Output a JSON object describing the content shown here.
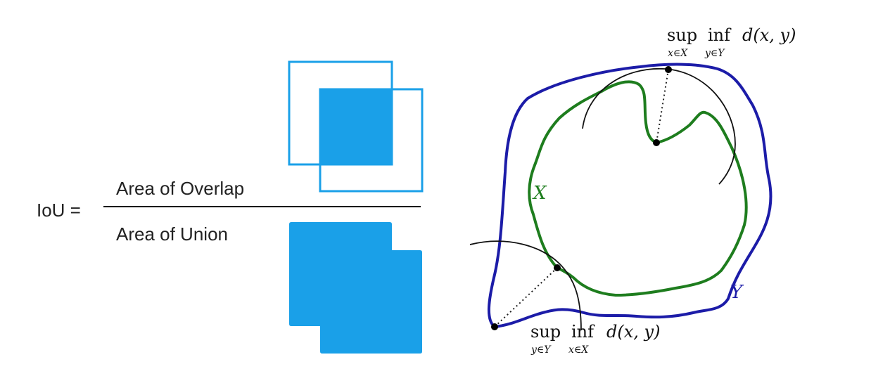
{
  "colors": {
    "box_blue": "#1aa0e8",
    "curve_y": "#1c1ca8",
    "curve_x": "#1e7d1e",
    "ink": "#000000",
    "text": "#222222"
  },
  "iou": {
    "lhs": "IoU =",
    "numerator": "Area of Overlap",
    "denominator": "Area of Union"
  },
  "hausdorff": {
    "set_x": "X",
    "set_y": "Y",
    "top_formula": {
      "sup": "sup",
      "sup_sub": "x∈X",
      "inf": "inf",
      "inf_sub": "y∈Y",
      "expr": "d(x, y)"
    },
    "bottom_formula": {
      "sup": "sup",
      "sup_sub": "y∈Y",
      "inf": "inf",
      "inf_sub": "x∈X",
      "expr": "d(x, y)"
    }
  }
}
